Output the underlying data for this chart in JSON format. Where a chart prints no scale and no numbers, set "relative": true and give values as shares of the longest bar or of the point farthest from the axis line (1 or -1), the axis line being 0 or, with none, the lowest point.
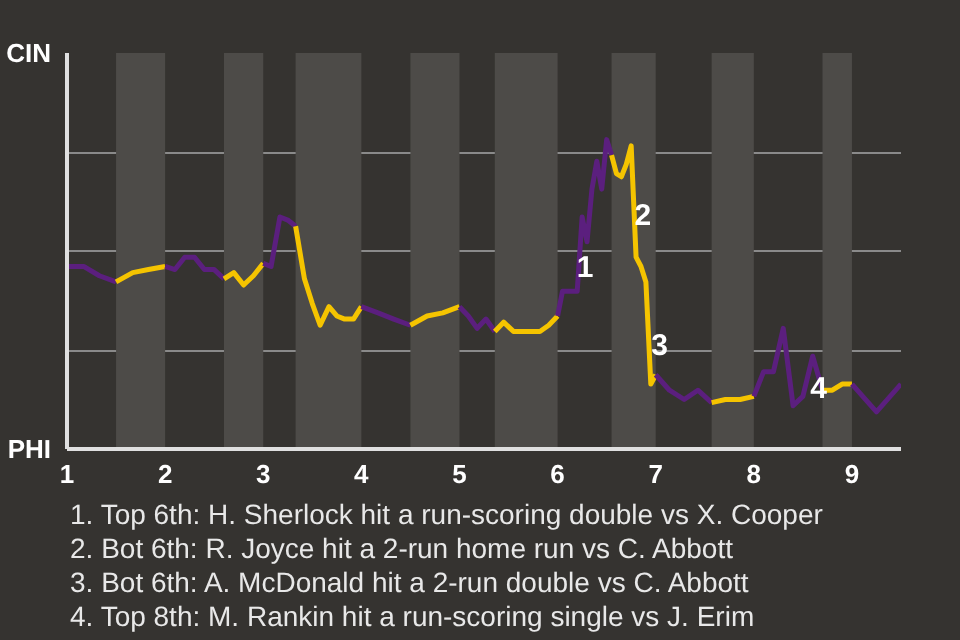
{
  "chart_data": {
    "type": "line",
    "relative": true,
    "xlim": [
      1,
      9.5
    ],
    "xticks": [
      1,
      2,
      3,
      4,
      5,
      6,
      7,
      8,
      9
    ],
    "series": [
      {
        "color": "#5b1f7e",
        "x": [
          1,
          1.17,
          1.33,
          1.5
        ],
        "values": [
          0.59,
          0.59,
          0.56,
          0.54
        ]
      },
      {
        "color": "#f5c400",
        "x": [
          1.5,
          1.67,
          1.83,
          2
        ],
        "values": [
          0.54,
          0.57,
          0.58,
          0.59
        ]
      },
      {
        "color": "#5b1f7e",
        "x": [
          2,
          2.1,
          2.2,
          2.3,
          2.4,
          2.5,
          2.6
        ],
        "values": [
          0.59,
          0.58,
          0.62,
          0.62,
          0.58,
          0.58,
          0.55
        ]
      },
      {
        "color": "#f5c400",
        "x": [
          2.6,
          2.7,
          2.8,
          2.9,
          3
        ],
        "values": [
          0.55,
          0.57,
          0.53,
          0.56,
          0.6
        ]
      },
      {
        "color": "#5b1f7e",
        "x": [
          3,
          3.08,
          3.17,
          3.25,
          3.33
        ],
        "values": [
          0.6,
          0.59,
          0.75,
          0.74,
          0.72
        ]
      },
      {
        "color": "#f5c400",
        "x": [
          3.33,
          3.42,
          3.5,
          3.58,
          3.67,
          3.75,
          3.83,
          3.92,
          4
        ],
        "values": [
          0.72,
          0.55,
          0.47,
          0.4,
          0.46,
          0.43,
          0.42,
          0.42,
          0.46
        ]
      },
      {
        "color": "#5b1f7e",
        "x": [
          4,
          4.17,
          4.33,
          4.5
        ],
        "values": [
          0.46,
          0.44,
          0.42,
          0.4
        ]
      },
      {
        "color": "#f5c400",
        "x": [
          4.5,
          4.67,
          4.83,
          5
        ],
        "values": [
          0.4,
          0.43,
          0.44,
          0.46
        ]
      },
      {
        "color": "#5b1f7e",
        "x": [
          5,
          5.09,
          5.18,
          5.27,
          5.36
        ],
        "values": [
          0.46,
          0.43,
          0.39,
          0.42,
          0.38
        ]
      },
      {
        "color": "#f5c400",
        "x": [
          5.36,
          5.45,
          5.55,
          5.64,
          5.73,
          5.82,
          5.91,
          6
        ],
        "values": [
          0.38,
          0.41,
          0.38,
          0.38,
          0.38,
          0.38,
          0.4,
          0.43
        ]
      },
      {
        "color": "#5b1f7e",
        "x": [
          6,
          6.05,
          6.1,
          6.15,
          6.2,
          6.25,
          6.3,
          6.35,
          6.4,
          6.45,
          6.5,
          6.55
        ],
        "values": [
          0.43,
          0.51,
          0.51,
          0.51,
          0.51,
          0.75,
          0.67,
          0.84,
          0.93,
          0.84,
          1,
          0.95
        ]
      },
      {
        "color": "#f5c400",
        "x": [
          6.55,
          6.6,
          6.65,
          6.7,
          6.75,
          6.8,
          6.85,
          6.9,
          6.95,
          7
        ],
        "values": [
          0.95,
          0.89,
          0.88,
          0.92,
          0.98,
          0.62,
          0.59,
          0.54,
          0.21,
          0.24
        ]
      },
      {
        "color": "#5b1f7e",
        "x": [
          7,
          7.14,
          7.29,
          7.43,
          7.57
        ],
        "values": [
          0.24,
          0.19,
          0.16,
          0.19,
          0.15
        ]
      },
      {
        "color": "#f5c400",
        "x": [
          7.57,
          7.71,
          7.86,
          8
        ],
        "values": [
          0.15,
          0.16,
          0.16,
          0.17
        ]
      },
      {
        "color": "#5b1f7e",
        "x": [
          8,
          8.1,
          8.2,
          8.3,
          8.4,
          8.5,
          8.6,
          8.7
        ],
        "values": [
          0.17,
          0.25,
          0.25,
          0.39,
          0.14,
          0.17,
          0.3,
          0.19
        ]
      },
      {
        "color": "#f5c400",
        "x": [
          8.7,
          8.8,
          8.9,
          9
        ],
        "values": [
          0.19,
          0.19,
          0.21,
          0.21
        ]
      },
      {
        "color": "#5b1f7e",
        "x": [
          9,
          9.25,
          9.5
        ],
        "values": [
          0.21,
          0.12,
          0.21
        ]
      }
    ],
    "grid": "y",
    "marker": "none",
    "line_style": "solid",
    "bands": [
      {
        "axis": "x",
        "from": 1.5,
        "to": 2,
        "color": "#4d4b48"
      },
      {
        "axis": "x",
        "from": 2.6,
        "to": 3,
        "color": "#4d4b48"
      },
      {
        "axis": "x",
        "from": 3.33,
        "to": 4,
        "color": "#4d4b48"
      },
      {
        "axis": "x",
        "from": 4.5,
        "to": 5,
        "color": "#4d4b48"
      },
      {
        "axis": "x",
        "from": 5.36,
        "to": 6,
        "color": "#4d4b48"
      },
      {
        "axis": "x",
        "from": 6.55,
        "to": 7,
        "color": "#4d4b48"
      },
      {
        "axis": "x",
        "from": 7.57,
        "to": 8,
        "color": "#4d4b48"
      },
      {
        "axis": "x",
        "from": 8.7,
        "to": 9,
        "color": "#4d4b48"
      }
    ],
    "annotations": [
      "CIN",
      "PHI",
      {
        "text": "1",
        "x": 6.28,
        "y": 0.59
      },
      {
        "text": "2",
        "x": 6.87,
        "y": 0.76
      },
      {
        "text": "3",
        "x": 7.04,
        "y": 0.34
      },
      {
        "text": "4",
        "x": 8.66,
        "y": 0.2
      },
      "1. Top 6th: H. Sherlock hit a run-scoring double vs X. Cooper",
      "2. Bot 6th: R. Joyce hit a 2-run home run vs C. Abbott",
      "3. Bot 6th: A. McDonald hit a 2-run double vs C. Abbott",
      "4. Top 8th: M. Rankin hit a run-scoring single vs J. Erim"
    ]
  }
}
